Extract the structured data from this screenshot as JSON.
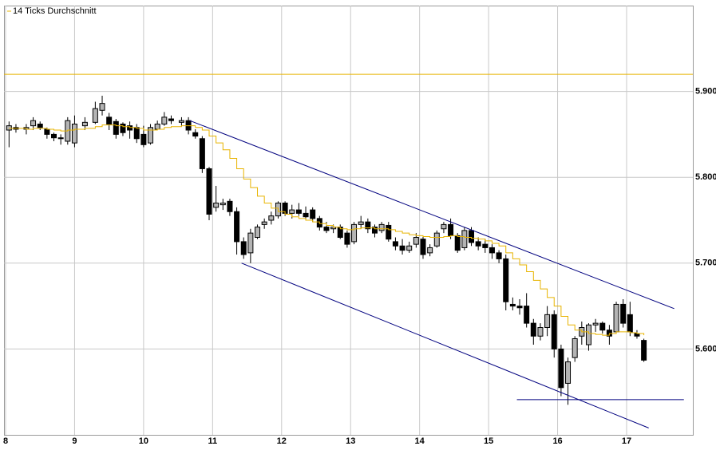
{
  "chart_data": {
    "type": "candlestick",
    "legend": {
      "name": "14 Ticks Durchschnitt",
      "color": "#e8b400",
      "corner": "top-left"
    },
    "xlim": [
      8,
      17.96
    ],
    "xticks": [
      8,
      9,
      10,
      11,
      12,
      13,
      14,
      15,
      16,
      17
    ],
    "ylim": [
      5.5,
      6.0
    ],
    "yticks": [
      {
        "value": 5.6,
        "label": "5.600"
      },
      {
        "value": 5.7,
        "label": "5.700"
      },
      {
        "value": 5.8,
        "label": "5.800"
      },
      {
        "value": 5.9,
        "label": "5.900"
      }
    ],
    "grid": true,
    "up_color": "#b4b4b4",
    "down_color": "#000000",
    "x": [
      8.05,
      8.15,
      8.3,
      8.4,
      8.5,
      8.6,
      8.7,
      8.8,
      8.9,
      9.0,
      9.15,
      9.3,
      9.4,
      9.5,
      9.6,
      9.7,
      9.8,
      9.9,
      10.0,
      10.1,
      10.2,
      10.3,
      10.4,
      10.55,
      10.65,
      10.75,
      10.85,
      10.95,
      11.05,
      11.15,
      11.25,
      11.35,
      11.45,
      11.55,
      11.65,
      11.75,
      11.85,
      11.95,
      12.05,
      12.15,
      12.25,
      12.35,
      12.45,
      12.55,
      12.65,
      12.75,
      12.85,
      12.95,
      13.05,
      13.15,
      13.25,
      13.35,
      13.45,
      13.55,
      13.65,
      13.75,
      13.85,
      13.95,
      14.05,
      14.15,
      14.25,
      14.35,
      14.45,
      14.55,
      14.65,
      14.75,
      14.85,
      14.95,
      15.05,
      15.15,
      15.25,
      15.35,
      15.45,
      15.55,
      15.65,
      15.75,
      15.85,
      15.95,
      16.05,
      16.15,
      16.25,
      16.35,
      16.45,
      16.55,
      16.65,
      16.75,
      16.85,
      16.95,
      17.05,
      17.15,
      17.25
    ],
    "open": [
      5.855,
      5.858,
      5.856,
      5.86,
      5.862,
      5.856,
      5.85,
      5.846,
      5.842,
      5.84,
      5.86,
      5.864,
      5.878,
      5.87,
      5.865,
      5.862,
      5.86,
      5.858,
      5.85,
      5.84,
      5.856,
      5.862,
      5.868,
      5.864,
      5.866,
      5.852,
      5.845,
      5.81,
      5.765,
      5.768,
      5.772,
      5.76,
      5.725,
      5.712,
      5.73,
      5.745,
      5.75,
      5.755,
      5.77,
      5.758,
      5.762,
      5.758,
      5.762,
      5.752,
      5.742,
      5.74,
      5.742,
      5.735,
      5.725,
      5.745,
      5.748,
      5.742,
      5.738,
      5.744,
      5.725,
      5.72,
      5.715,
      5.722,
      5.728,
      5.712,
      5.72,
      5.74,
      5.745,
      5.732,
      5.718,
      5.738,
      5.725,
      5.722,
      5.718,
      5.712,
      5.705,
      5.652,
      5.65,
      5.65,
      5.63,
      5.615,
      5.625,
      5.64,
      5.6,
      5.56,
      5.59,
      5.615,
      5.605,
      5.628,
      5.63,
      5.622,
      5.62,
      5.652,
      5.64,
      5.618,
      5.61
    ],
    "high": [
      5.865,
      5.862,
      5.862,
      5.87,
      5.865,
      5.858,
      5.852,
      5.85,
      5.87,
      5.872,
      5.87,
      5.888,
      5.895,
      5.875,
      5.868,
      5.864,
      5.865,
      5.862,
      5.86,
      5.862,
      5.866,
      5.876,
      5.872,
      5.87,
      5.87,
      5.856,
      5.848,
      5.812,
      5.79,
      5.775,
      5.775,
      5.765,
      5.73,
      5.74,
      5.745,
      5.752,
      5.76,
      5.772,
      5.772,
      5.768,
      5.77,
      5.766,
      5.765,
      5.755,
      5.748,
      5.745,
      5.745,
      5.738,
      5.748,
      5.755,
      5.752,
      5.745,
      5.748,
      5.748,
      5.73,
      5.728,
      5.725,
      5.735,
      5.732,
      5.722,
      5.738,
      5.748,
      5.752,
      5.735,
      5.742,
      5.742,
      5.73,
      5.728,
      5.722,
      5.715,
      5.71,
      5.66,
      5.658,
      5.665,
      5.635,
      5.63,
      5.65,
      5.645,
      5.605,
      5.59,
      5.615,
      5.632,
      5.63,
      5.635,
      5.632,
      5.628,
      5.655,
      5.658,
      5.655,
      5.622,
      5.612
    ],
    "low": [
      5.835,
      5.852,
      5.85,
      5.855,
      5.855,
      5.845,
      5.842,
      5.838,
      5.838,
      5.835,
      5.855,
      5.862,
      5.872,
      5.855,
      5.845,
      5.848,
      5.845,
      5.84,
      5.835,
      5.838,
      5.855,
      5.86,
      5.862,
      5.86,
      5.85,
      5.845,
      5.805,
      5.75,
      5.76,
      5.762,
      5.755,
      5.71,
      5.705,
      5.7,
      5.728,
      5.74,
      5.745,
      5.752,
      5.755,
      5.752,
      5.755,
      5.75,
      5.748,
      5.738,
      5.735,
      5.735,
      5.728,
      5.718,
      5.722,
      5.74,
      5.735,
      5.73,
      5.735,
      5.725,
      5.715,
      5.71,
      5.712,
      5.718,
      5.705,
      5.708,
      5.718,
      5.735,
      5.728,
      5.712,
      5.715,
      5.72,
      5.715,
      5.712,
      5.705,
      5.7,
      5.645,
      5.645,
      5.64,
      5.625,
      5.605,
      5.61,
      5.615,
      5.59,
      5.545,
      5.535,
      5.585,
      5.605,
      5.598,
      5.62,
      5.618,
      5.605,
      5.618,
      5.625,
      5.615,
      5.612,
      5.585
    ],
    "close": [
      5.86,
      5.856,
      5.858,
      5.866,
      5.858,
      5.85,
      5.846,
      5.845,
      5.866,
      5.862,
      5.864,
      5.88,
      5.886,
      5.862,
      5.85,
      5.852,
      5.855,
      5.845,
      5.838,
      5.858,
      5.862,
      5.87,
      5.866,
      5.866,
      5.855,
      5.848,
      5.81,
      5.757,
      5.77,
      5.77,
      5.76,
      5.725,
      5.71,
      5.735,
      5.742,
      5.748,
      5.755,
      5.77,
      5.758,
      5.762,
      5.758,
      5.754,
      5.752,
      5.742,
      5.738,
      5.742,
      5.73,
      5.722,
      5.745,
      5.748,
      5.74,
      5.735,
      5.745,
      5.728,
      5.72,
      5.715,
      5.72,
      5.73,
      5.71,
      5.718,
      5.735,
      5.745,
      5.732,
      5.715,
      5.738,
      5.724,
      5.72,
      5.718,
      5.712,
      5.705,
      5.655,
      5.65,
      5.648,
      5.63,
      5.615,
      5.625,
      5.64,
      5.6,
      5.555,
      5.585,
      5.612,
      5.625,
      5.628,
      5.63,
      5.622,
      5.615,
      5.652,
      5.63,
      5.62,
      5.615,
      5.587
    ],
    "average": [
      5.857,
      5.857,
      5.856,
      5.857,
      5.857,
      5.856,
      5.855,
      5.854,
      5.855,
      5.856,
      5.857,
      5.859,
      5.861,
      5.861,
      5.86,
      5.859,
      5.858,
      5.857,
      5.855,
      5.855,
      5.856,
      5.858,
      5.859,
      5.86,
      5.86,
      5.858,
      5.855,
      5.848,
      5.84,
      5.832,
      5.822,
      5.81,
      5.798,
      5.788,
      5.778,
      5.77,
      5.764,
      5.76,
      5.757,
      5.754,
      5.752,
      5.75,
      5.748,
      5.746,
      5.744,
      5.742,
      5.74,
      5.739,
      5.74,
      5.741,
      5.741,
      5.74,
      5.74,
      5.739,
      5.737,
      5.735,
      5.733,
      5.732,
      5.731,
      5.73,
      5.73,
      5.731,
      5.732,
      5.731,
      5.73,
      5.729,
      5.728,
      5.726,
      5.723,
      5.72,
      5.712,
      5.705,
      5.698,
      5.69,
      5.68,
      5.67,
      5.66,
      5.65,
      5.638,
      5.628,
      5.622,
      5.62,
      5.618,
      5.617,
      5.616,
      5.618,
      5.62,
      5.62,
      5.619,
      5.618,
      5.616
    ],
    "hlines": [
      {
        "value": 5.92,
        "color": "#e8b400"
      }
    ],
    "lines": [
      {
        "x": [
          10.67,
          17.69
        ],
        "y": [
          5.866,
          5.647
        ],
        "color": "#00007f"
      },
      {
        "x": [
          11.42,
          17.32
        ],
        "y": [
          5.7,
          5.508
        ],
        "color": "#00007f"
      },
      {
        "x": [
          15.41,
          17.83
        ],
        "y": [
          5.541,
          5.541
        ],
        "color": "#00007f"
      }
    ]
  }
}
